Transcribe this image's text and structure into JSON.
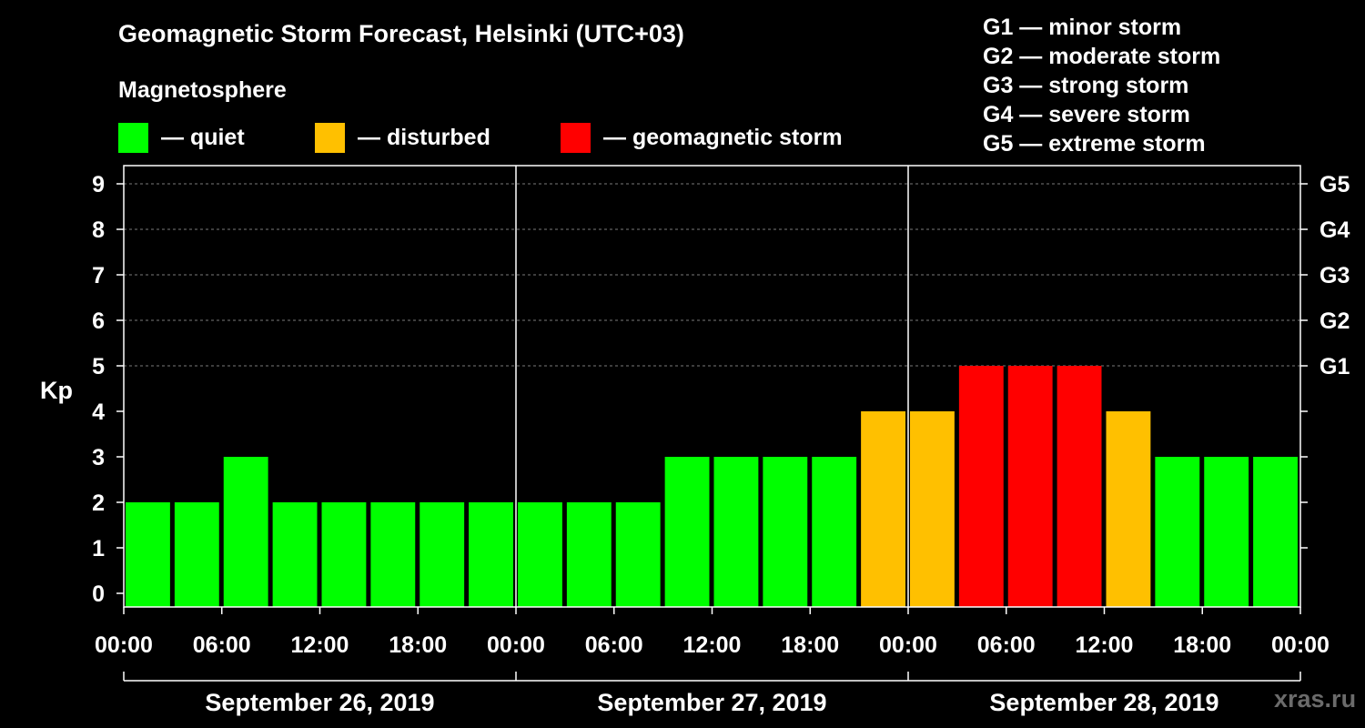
{
  "title": "Geomagnetic Storm Forecast, Helsinki (UTC+03)",
  "subtitle": "Magnetosphere",
  "legend": [
    {
      "label": "— quiet",
      "color": "#00ff00"
    },
    {
      "label": "— disturbed",
      "color": "#ffc000"
    },
    {
      "label": "— geomagnetic storm",
      "color": "#ff0000"
    }
  ],
  "g_levels": [
    {
      "text": "G1 — minor storm"
    },
    {
      "text": "G2 — moderate storm"
    },
    {
      "text": "G3 — strong storm"
    },
    {
      "text": "G4 — severe storm"
    },
    {
      "text": "G5 — extreme storm"
    }
  ],
  "watermark": "xras.ru",
  "chart_data": {
    "type": "bar",
    "ylabel": "Kp",
    "ylim": [
      0,
      9
    ],
    "y_ticks": [
      "0",
      "1",
      "2",
      "3",
      "4",
      "5",
      "6",
      "7",
      "8",
      "9"
    ],
    "right_ticks": [
      {
        "value": 5,
        "label": "G1"
      },
      {
        "value": 6,
        "label": "G2"
      },
      {
        "value": 7,
        "label": "G3"
      },
      {
        "value": 8,
        "label": "G4"
      },
      {
        "value": 9,
        "label": "G5"
      }
    ],
    "grid": "horizontal dashed",
    "x_tick_labels": [
      "00:00",
      "06:00",
      "12:00",
      "18:00",
      "00:00",
      "06:00",
      "12:00",
      "18:00",
      "00:00",
      "06:00",
      "12:00",
      "18:00",
      "00:00"
    ],
    "days": [
      "September 26, 2019",
      "September 27, 2019",
      "September 28, 2019"
    ],
    "interval_hours": 3,
    "values": [
      2,
      2,
      3,
      2,
      2,
      2,
      2,
      2,
      2,
      2,
      2,
      3,
      3,
      3,
      3,
      4,
      4,
      5,
      5,
      5,
      4,
      3,
      3,
      3
    ],
    "colors": {
      "quiet": "#00ff00",
      "disturbed": "#ffc000",
      "storm": "#ff0000"
    },
    "color_rule": "Kp<=3 quiet, Kp=4 disturbed, Kp>=5 storm"
  }
}
